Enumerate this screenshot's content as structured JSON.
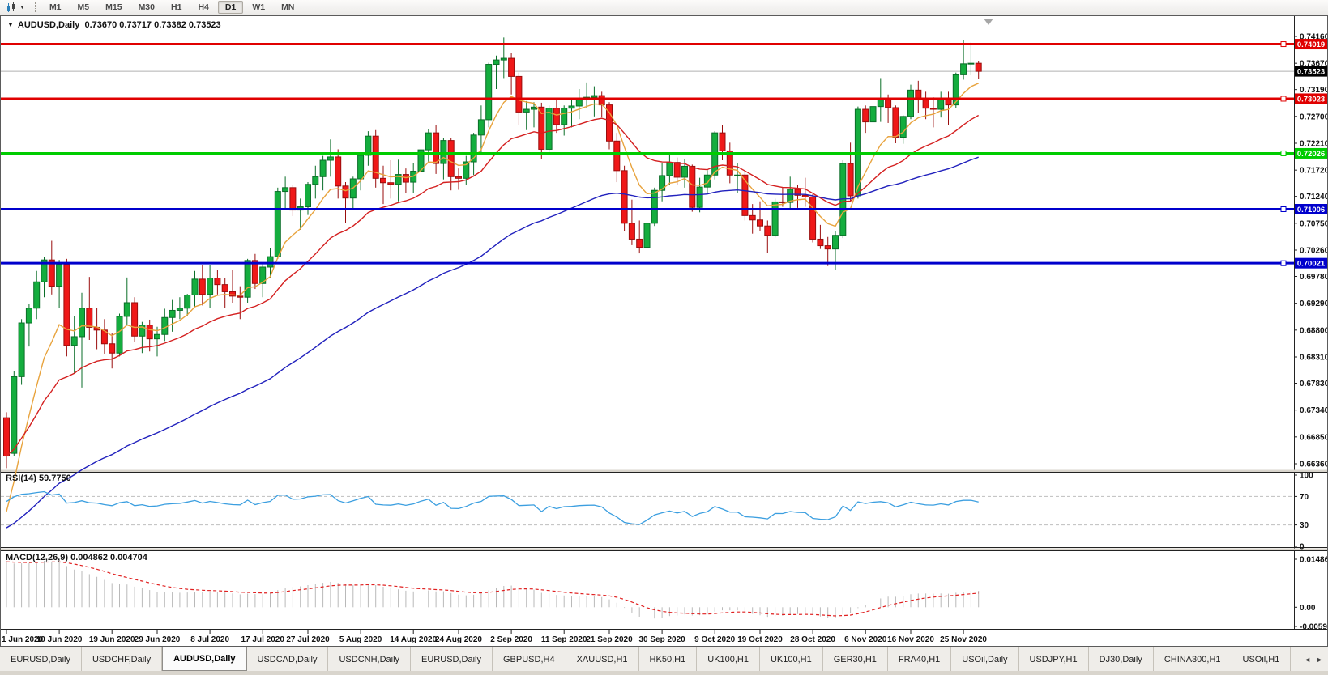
{
  "toolbar": {
    "timeframes": [
      "M1",
      "M5",
      "M15",
      "M30",
      "H1",
      "H4",
      "D1",
      "W1",
      "MN"
    ],
    "active": "D1",
    "chart_type_icon": "chart-type",
    "dropdown_caret": "▼"
  },
  "window": {
    "collapse_icon": "▼",
    "title_symbol": "AUDUSD,Daily",
    "title_ohlc": "0.73670 0.73717 0.73382 0.73523"
  },
  "rsi_label": "RSI(14) 59.7750",
  "macd_label": "MACD(12,26,9) 0.004862 0.004704",
  "tabs": {
    "items": [
      "EURUSD,Daily",
      "USDCHF,Daily",
      "AUDUSD,Daily",
      "USDCAD,Daily",
      "USDCNH,Daily",
      "EURUSD,Daily",
      "GBPUSD,H4",
      "XAUUSD,H1",
      "HK50,H1",
      "UK100,H1",
      "UK100,H1",
      "GER30,H1",
      "FRA40,H1",
      "USOil,Daily",
      "USDJPY,H1",
      "DJ30,Daily",
      "CHINA300,H1",
      "USOil,H1"
    ],
    "active_index": 2,
    "scroll_left": "◄",
    "scroll_right": "►"
  },
  "chart_data": {
    "type": "candlestick",
    "symbol": "AUDUSD",
    "timeframe": "Daily",
    "up_fill": "#14ad3e",
    "up_stroke": "#0a6e28",
    "down_fill": "#ef1818",
    "down_stroke": "#9a0d0d",
    "current_price": {
      "value": 0.73523,
      "badge_bg": "#000000",
      "line_color": "#b0b0b0"
    },
    "price_axis": {
      "decimals": 5,
      "ticks": [
        0.7416,
        0.7367,
        0.7319,
        0.727,
        0.7221,
        0.7172,
        0.7124,
        0.7075,
        0.7026,
        0.6978,
        0.6929,
        0.688,
        0.6831,
        0.6783,
        0.6734,
        0.6685,
        0.6636
      ]
    },
    "hlines": [
      {
        "price": 0.74019,
        "color": "#e00000"
      },
      {
        "price": 0.73023,
        "color": "#e00000"
      },
      {
        "price": 0.72026,
        "color": "#00cc00"
      },
      {
        "price": 0.71006,
        "color": "#0000cc"
      },
      {
        "price": 0.70021,
        "color": "#0000cc"
      }
    ],
    "moving_averages": [
      {
        "name": "fast",
        "period": 8,
        "seed": 0.652,
        "color": "#e8a33d"
      },
      {
        "name": "mid",
        "period": 22,
        "seed": 0.665,
        "color": "#d42020"
      },
      {
        "name": "slow",
        "period": 65,
        "seed": 0.6515,
        "color": "#2121bd"
      }
    ],
    "rsi": {
      "period": 14,
      "value": "59.7750",
      "color": "#3c9fe0",
      "levels": [
        70,
        30
      ],
      "axis_labels": [
        100,
        70,
        30,
        0
      ]
    },
    "macd": {
      "fast": 12,
      "slow": 26,
      "signal": 9,
      "seed_fast": 0.6775,
      "seed_slow": 0.661,
      "seed_signal": 0.014,
      "hist_color": "#b9b9b9",
      "signal_color": "#e02020",
      "axis": [
        {
          "v": 0.014861,
          "t": "0.014861"
        },
        {
          "v": 0,
          "t": "0.00"
        },
        {
          "v": -0.005938,
          "t": "-0.005938"
        }
      ]
    },
    "x_labels": [
      {
        "t": "1 Jun 2020",
        "bar": 0
      },
      {
        "t": "10 Jun 2020",
        "bar": 7
      },
      {
        "t": "19 Jun 2020",
        "bar": 14
      },
      {
        "t": "29 Jun 2020",
        "bar": 20
      },
      {
        "t": "8 Jul 2020",
        "bar": 27
      },
      {
        "t": "17 Jul 2020",
        "bar": 34
      },
      {
        "t": "27 Jul 2020",
        "bar": 40
      },
      {
        "t": "5 Aug 2020",
        "bar": 47
      },
      {
        "t": "14 Aug 2020",
        "bar": 54
      },
      {
        "t": "24 Aug 2020",
        "bar": 60
      },
      {
        "t": "2 Sep 2020",
        "bar": 67
      },
      {
        "t": "11 Sep 2020",
        "bar": 74
      },
      {
        "t": "21 Sep 2020",
        "bar": 80
      },
      {
        "t": "30 Sep 2020",
        "bar": 87
      },
      {
        "t": "9 Oct 2020",
        "bar": 94
      },
      {
        "t": "19 Oct 2020",
        "bar": 100
      },
      {
        "t": "28 Oct 2020",
        "bar": 107
      },
      {
        "t": "6 Nov 2020",
        "bar": 114
      },
      {
        "t": "16 Nov 2020",
        "bar": 120
      },
      {
        "t": "25 Nov 2020",
        "bar": 127
      }
    ],
    "candles": [
      [
        0.672,
        0.673,
        0.6628,
        0.665
      ],
      [
        0.6655,
        0.6805,
        0.665,
        0.6795
      ],
      [
        0.6795,
        0.69,
        0.678,
        0.6893
      ],
      [
        0.6893,
        0.6928,
        0.685,
        0.692
      ],
      [
        0.692,
        0.6988,
        0.69,
        0.6968
      ],
      [
        0.6968,
        0.7013,
        0.694,
        0.7008
      ],
      [
        0.7008,
        0.7043,
        0.6945,
        0.696
      ],
      [
        0.696,
        0.7008,
        0.692,
        0.7
      ],
      [
        0.7,
        0.701,
        0.6832,
        0.6852
      ],
      [
        0.6852,
        0.6905,
        0.68,
        0.6868
      ],
      [
        0.6868,
        0.6948,
        0.6775,
        0.692
      ],
      [
        0.692,
        0.6977,
        0.6862,
        0.6885
      ],
      [
        0.6885,
        0.692,
        0.6845,
        0.688
      ],
      [
        0.688,
        0.69,
        0.6837,
        0.6855
      ],
      [
        0.6855,
        0.6875,
        0.681,
        0.6838
      ],
      [
        0.6838,
        0.691,
        0.6832,
        0.6905
      ],
      [
        0.6905,
        0.6976,
        0.689,
        0.693
      ],
      [
        0.693,
        0.694,
        0.6858,
        0.6869
      ],
      [
        0.6869,
        0.6895,
        0.6838,
        0.6889
      ],
      [
        0.6889,
        0.6899,
        0.6841,
        0.6864
      ],
      [
        0.6864,
        0.6886,
        0.6832,
        0.6872
      ],
      [
        0.6872,
        0.6919,
        0.686,
        0.6903
      ],
      [
        0.6903,
        0.6935,
        0.6877,
        0.6916
      ],
      [
        0.6916,
        0.694,
        0.69,
        0.692
      ],
      [
        0.692,
        0.6946,
        0.6905,
        0.6944
      ],
      [
        0.6944,
        0.6988,
        0.6922,
        0.6973
      ],
      [
        0.6973,
        0.6998,
        0.6925,
        0.6945
      ],
      [
        0.6945,
        0.6999,
        0.692,
        0.6975
      ],
      [
        0.6975,
        0.699,
        0.6945,
        0.6963
      ],
      [
        0.6963,
        0.6975,
        0.692,
        0.695
      ],
      [
        0.695,
        0.699,
        0.693,
        0.6942
      ],
      [
        0.6942,
        0.696,
        0.69,
        0.694
      ],
      [
        0.694,
        0.701,
        0.693,
        0.7007
      ],
      [
        0.7007,
        0.7019,
        0.6955,
        0.6965
      ],
      [
        0.6965,
        0.7,
        0.694,
        0.6995
      ],
      [
        0.6995,
        0.703,
        0.6975,
        0.7014
      ],
      [
        0.7014,
        0.714,
        0.701,
        0.7133
      ],
      [
        0.7133,
        0.716,
        0.71,
        0.714
      ],
      [
        0.714,
        0.7145,
        0.7088,
        0.7099
      ],
      [
        0.7099,
        0.712,
        0.7063,
        0.7105
      ],
      [
        0.7105,
        0.715,
        0.709,
        0.7146
      ],
      [
        0.7146,
        0.718,
        0.712,
        0.716
      ],
      [
        0.716,
        0.7198,
        0.7135,
        0.719
      ],
      [
        0.719,
        0.7228,
        0.716,
        0.7196
      ],
      [
        0.7196,
        0.721,
        0.712,
        0.7143
      ],
      [
        0.7143,
        0.715,
        0.7075,
        0.7121
      ],
      [
        0.7121,
        0.716,
        0.71,
        0.7156
      ],
      [
        0.7156,
        0.7203,
        0.7135,
        0.7199
      ],
      [
        0.7199,
        0.7243,
        0.718,
        0.7234
      ],
      [
        0.7234,
        0.7245,
        0.714,
        0.7157
      ],
      [
        0.7157,
        0.718,
        0.711,
        0.7149
      ],
      [
        0.7149,
        0.719,
        0.712,
        0.7146
      ],
      [
        0.7146,
        0.7191,
        0.7115,
        0.7164
      ],
      [
        0.7164,
        0.7175,
        0.713,
        0.715
      ],
      [
        0.715,
        0.7185,
        0.713,
        0.717
      ],
      [
        0.717,
        0.7215,
        0.715,
        0.7209
      ],
      [
        0.7209,
        0.7247,
        0.7185,
        0.724
      ],
      [
        0.724,
        0.7255,
        0.7165,
        0.7184
      ],
      [
        0.7184,
        0.723,
        0.7155,
        0.7226
      ],
      [
        0.7226,
        0.723,
        0.7135,
        0.716
      ],
      [
        0.716,
        0.7175,
        0.7136,
        0.7157
      ],
      [
        0.7157,
        0.7198,
        0.7145,
        0.7187
      ],
      [
        0.7187,
        0.724,
        0.7163,
        0.7236
      ],
      [
        0.7236,
        0.729,
        0.72,
        0.7264
      ],
      [
        0.7264,
        0.7368,
        0.725,
        0.7365
      ],
      [
        0.7365,
        0.7381,
        0.732,
        0.7373
      ],
      [
        0.7373,
        0.7414,
        0.734,
        0.7376
      ],
      [
        0.7376,
        0.7385,
        0.731,
        0.7343
      ],
      [
        0.7343,
        0.735,
        0.7255,
        0.7278
      ],
      [
        0.7278,
        0.7298,
        0.7245,
        0.7283
      ],
      [
        0.7283,
        0.7296,
        0.725,
        0.7287
      ],
      [
        0.7287,
        0.7295,
        0.7192,
        0.721
      ],
      [
        0.721,
        0.729,
        0.7205,
        0.7285
      ],
      [
        0.7285,
        0.73,
        0.724,
        0.7255
      ],
      [
        0.7255,
        0.729,
        0.7235,
        0.7285
      ],
      [
        0.7285,
        0.73,
        0.725,
        0.7289
      ],
      [
        0.7289,
        0.732,
        0.7265,
        0.7301
      ],
      [
        0.7301,
        0.7332,
        0.7285,
        0.7305
      ],
      [
        0.7305,
        0.7325,
        0.727,
        0.7308
      ],
      [
        0.7308,
        0.7315,
        0.7268,
        0.7291
      ],
      [
        0.7291,
        0.7296,
        0.721,
        0.7225
      ],
      [
        0.7225,
        0.724,
        0.715,
        0.7171
      ],
      [
        0.7171,
        0.718,
        0.706,
        0.7075
      ],
      [
        0.7075,
        0.7118,
        0.7035,
        0.7046
      ],
      [
        0.7046,
        0.708,
        0.702,
        0.7031
      ],
      [
        0.7031,
        0.709,
        0.7025,
        0.7075
      ],
      [
        0.7075,
        0.714,
        0.707,
        0.7135
      ],
      [
        0.7135,
        0.7185,
        0.7115,
        0.7162
      ],
      [
        0.7162,
        0.72,
        0.7145,
        0.7186
      ],
      [
        0.7186,
        0.7195,
        0.7145,
        0.7159
      ],
      [
        0.7159,
        0.7192,
        0.714,
        0.7179
      ],
      [
        0.7179,
        0.7182,
        0.7096,
        0.7104
      ],
      [
        0.7104,
        0.7158,
        0.7095,
        0.7141
      ],
      [
        0.7141,
        0.7172,
        0.713,
        0.7163
      ],
      [
        0.7163,
        0.7243,
        0.7155,
        0.724
      ],
      [
        0.724,
        0.7255,
        0.719,
        0.7207
      ],
      [
        0.7207,
        0.7222,
        0.7148,
        0.7163
      ],
      [
        0.7163,
        0.7185,
        0.713,
        0.7163
      ],
      [
        0.7163,
        0.717,
        0.708,
        0.7089
      ],
      [
        0.7089,
        0.711,
        0.7056,
        0.7081
      ],
      [
        0.7081,
        0.7115,
        0.706,
        0.707
      ],
      [
        0.707,
        0.708,
        0.7021,
        0.7053
      ],
      [
        0.7053,
        0.712,
        0.7049,
        0.7114
      ],
      [
        0.7114,
        0.714,
        0.7105,
        0.7113
      ],
      [
        0.7113,
        0.716,
        0.71,
        0.7137
      ],
      [
        0.7137,
        0.7145,
        0.7103,
        0.7126
      ],
      [
        0.7126,
        0.7158,
        0.7105,
        0.7123
      ],
      [
        0.7123,
        0.7128,
        0.704,
        0.7046
      ],
      [
        0.7046,
        0.7072,
        0.7028,
        0.7034
      ],
      [
        0.7034,
        0.705,
        0.6997,
        0.7028
      ],
      [
        0.7028,
        0.706,
        0.699,
        0.7053
      ],
      [
        0.7053,
        0.719,
        0.7048,
        0.7184
      ],
      [
        0.7184,
        0.7222,
        0.7115,
        0.7125
      ],
      [
        0.7125,
        0.7288,
        0.712,
        0.7283
      ],
      [
        0.7283,
        0.729,
        0.724,
        0.726
      ],
      [
        0.726,
        0.7302,
        0.725,
        0.7288
      ],
      [
        0.7288,
        0.734,
        0.726,
        0.73
      ],
      [
        0.73,
        0.731,
        0.7258,
        0.7286
      ],
      [
        0.7286,
        0.729,
        0.7221,
        0.7232
      ],
      [
        0.7232,
        0.7272,
        0.722,
        0.727
      ],
      [
        0.727,
        0.7328,
        0.7265,
        0.7318
      ],
      [
        0.7318,
        0.7335,
        0.7277,
        0.73
      ],
      [
        0.73,
        0.7315,
        0.7265,
        0.7285
      ],
      [
        0.7285,
        0.7305,
        0.725,
        0.7283
      ],
      [
        0.7283,
        0.7315,
        0.7268,
        0.7303
      ],
      [
        0.7303,
        0.7315,
        0.7255,
        0.7291
      ],
      [
        0.7291,
        0.735,
        0.7285,
        0.7346
      ],
      [
        0.7346,
        0.741,
        0.7337,
        0.7366
      ],
      [
        0.7366,
        0.7405,
        0.7345,
        0.7367
      ],
      [
        0.7367,
        0.73717,
        0.73382,
        0.73523
      ]
    ]
  }
}
